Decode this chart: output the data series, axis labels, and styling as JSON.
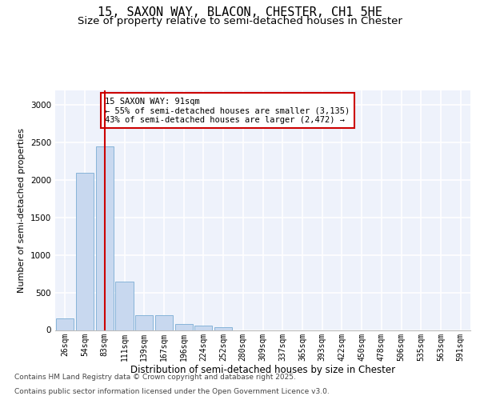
{
  "title_line1": "15, SAXON WAY, BLACON, CHESTER, CH1 5HE",
  "title_line2": "Size of property relative to semi-detached houses in Chester",
  "xlabel": "Distribution of semi-detached houses by size in Chester",
  "ylabel": "Number of semi-detached properties",
  "bar_color": "#c8d8ef",
  "bar_edge_color": "#7aadd4",
  "categories": [
    "26sqm",
    "54sqm",
    "83sqm",
    "111sqm",
    "139sqm",
    "167sqm",
    "196sqm",
    "224sqm",
    "252sqm",
    "280sqm",
    "309sqm",
    "337sqm",
    "365sqm",
    "393sqm",
    "422sqm",
    "450sqm",
    "478sqm",
    "506sqm",
    "535sqm",
    "563sqm",
    "591sqm"
  ],
  "values": [
    150,
    2100,
    2450,
    650,
    200,
    200,
    80,
    55,
    40,
    0,
    0,
    0,
    0,
    0,
    0,
    0,
    0,
    0,
    0,
    0,
    0
  ],
  "ylim": [
    0,
    3200
  ],
  "yticks": [
    0,
    500,
    1000,
    1500,
    2000,
    2500,
    3000
  ],
  "vline_color": "#cc0000",
  "annotation_text": "15 SAXON WAY: 91sqm\n← 55% of semi-detached houses are smaller (3,135)\n43% of semi-detached houses are larger (2,472) →",
  "annotation_box_color": "#ffffff",
  "annotation_box_edge": "#cc0000",
  "footer_line1": "Contains HM Land Registry data © Crown copyright and database right 2025.",
  "footer_line2": "Contains public sector information licensed under the Open Government Licence v3.0.",
  "background_color": "#eef2fb",
  "grid_color": "#ffffff",
  "title_fontsize": 11,
  "subtitle_fontsize": 9.5,
  "ylabel_fontsize": 8,
  "xlabel_fontsize": 8.5,
  "tick_fontsize": 7,
  "annotation_fontsize": 7.5,
  "footer_fontsize": 6.5
}
